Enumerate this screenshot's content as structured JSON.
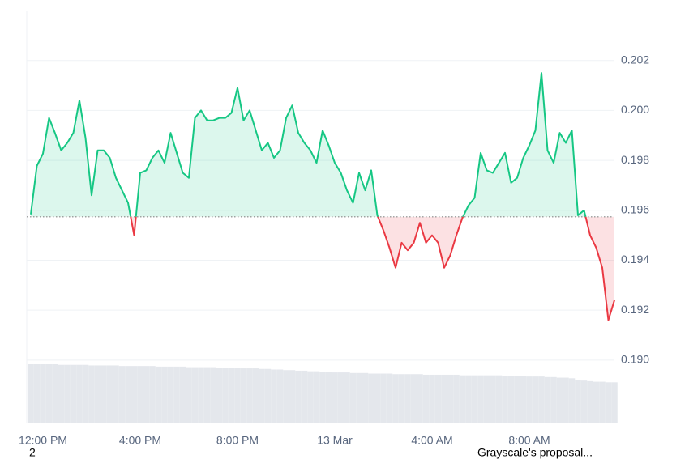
{
  "chart_data": {
    "type": "baseline-line",
    "categories": [
      null,
      null,
      "12:00 PM",
      null,
      null,
      null,
      null,
      null,
      null,
      null,
      null,
      null,
      null,
      null,
      null,
      null,
      null,
      null,
      "4:00 PM",
      null,
      null,
      null,
      null,
      null,
      null,
      null,
      null,
      null,
      null,
      null,
      null,
      null,
      null,
      null,
      "8:00 PM",
      null,
      null,
      null,
      null,
      null,
      null,
      null,
      null,
      null,
      null,
      null,
      null,
      null,
      null,
      null,
      "13 Mar",
      null,
      null,
      null,
      null,
      null,
      null,
      null,
      null,
      null,
      null,
      null,
      null,
      null,
      null,
      null,
      "4:00 AM",
      null,
      null,
      null,
      null,
      null,
      null,
      null,
      null,
      null,
      null,
      null,
      null,
      null,
      null,
      null,
      "8:00 AM",
      null,
      null,
      null,
      null,
      null,
      null,
      null,
      null,
      null,
      null,
      null,
      null,
      null,
      null
    ],
    "values": [
      0.19584,
      0.19778,
      0.19827,
      0.1997,
      0.19908,
      0.1984,
      0.1987,
      0.1991,
      0.2004,
      0.1989,
      0.1966,
      0.1984,
      0.1984,
      0.1981,
      0.1973,
      0.1968,
      0.1963,
      0.195,
      0.1975,
      0.1976,
      0.1981,
      0.1984,
      0.1979,
      0.1991,
      0.1983,
      0.1975,
      0.1973,
      0.1997,
      0.2,
      0.1996,
      0.1996,
      0.1997,
      0.1997,
      0.1999,
      0.2009,
      0.1996,
      0.2,
      0.1992,
      0.1984,
      0.1987,
      0.1981,
      0.1984,
      0.1997,
      0.2002,
      0.1991,
      0.1987,
      0.1984,
      0.1979,
      0.1992,
      0.1986,
      0.1979,
      0.1975,
      0.1968,
      0.1963,
      0.1975,
      0.1968,
      0.1976,
      0.1958,
      0.1952,
      0.1945,
      0.1937,
      0.1947,
      0.1944,
      0.1947,
      0.1955,
      0.1947,
      0.195,
      0.1947,
      0.1937,
      0.1942,
      0.195,
      0.1957,
      0.1962,
      0.1965,
      0.1983,
      0.1976,
      0.1975,
      0.1979,
      0.1983,
      0.1971,
      0.1973,
      0.1981,
      0.1986,
      0.1992,
      0.2015,
      0.1984,
      0.1979,
      0.1991,
      0.1987,
      0.1992,
      0.1958,
      0.196,
      0.195,
      0.1945,
      0.1937,
      0.1916,
      0.1924
    ],
    "baseline": 0.19574,
    "up_color": "#16c784",
    "down_color": "#ea3943",
    "volume": [
      100,
      100,
      100,
      100,
      100,
      99,
      99,
      99,
      99,
      99,
      98,
      98,
      98,
      98,
      98,
      97,
      97,
      97,
      97,
      97,
      97,
      96,
      96,
      96,
      96,
      96,
      95,
      95,
      95,
      95,
      95,
      94,
      94,
      94,
      94,
      93,
      93,
      93,
      92,
      92,
      91,
      91,
      90,
      90,
      89,
      89,
      88,
      88,
      87,
      87,
      86,
      86,
      86,
      85,
      85,
      85,
      84,
      84,
      84,
      84,
      83,
      83,
      83,
      83,
      83,
      82,
      82,
      82,
      82,
      82,
      82,
      81,
      81,
      81,
      81,
      81,
      81,
      81,
      80,
      80,
      80,
      80,
      79,
      79,
      79,
      78,
      78,
      77,
      77,
      76,
      73,
      72,
      71,
      70,
      70,
      69,
      69
    ],
    "volume_color": "#e4e7ec",
    "vlim": [
      0,
      100
    ],
    "ylim": [
      0.1875,
      0.204
    ],
    "yticks": [
      {
        "value": 0.19,
        "label": "0.190"
      },
      0.192,
      0.194,
      0.196,
      0.198,
      {
        "value": 0.2,
        "label": "0.200"
      },
      0.202
    ],
    "grid": true,
    "annotations": [
      "2",
      "Grayscale's proposal..."
    ]
  }
}
